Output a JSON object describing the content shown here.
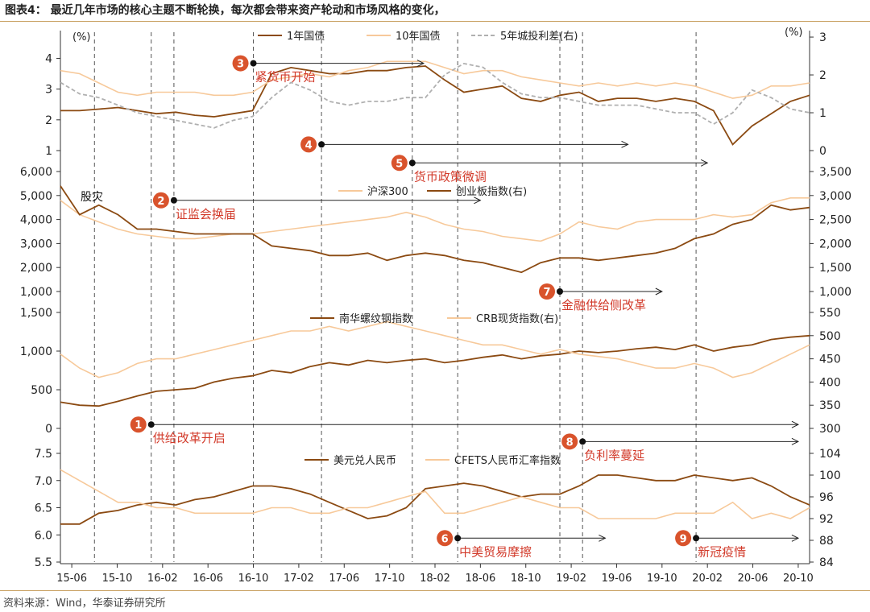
{
  "title": "图表4：  最近几年市场的核心主题不断轮换，每次都会带来资产轮动和市场风格的变化，",
  "source": "资料来源：Wind，华泰证券研究所",
  "colors": {
    "dark": "#8B4A12",
    "light": "#F7C99A",
    "gray": "#B0B0B0",
    "red": "#D23A2A",
    "badge": "#D9532C",
    "axis": "#333333"
  },
  "chart_data": {
    "type": "line",
    "x_ticks": [
      "15-06",
      "15-10",
      "16-02",
      "16-06",
      "16-10",
      "17-02",
      "17-06",
      "17-10",
      "18-02",
      "18-06",
      "18-10",
      "19-02",
      "19-06",
      "19-10",
      "20-02",
      "20-06",
      "20-10"
    ],
    "x_range": [
      "2015-05",
      "2020-11"
    ],
    "event_lines": [
      "2015-08",
      "2016-01",
      "2016-03",
      "2016-10",
      "2017-04",
      "2017-12",
      "2018-04",
      "2019-01",
      "2019-03",
      "2020-01"
    ],
    "panels": [
      {
        "id": "rates",
        "left_unit": "(%)",
        "right_unit": "(%)",
        "left_ticks": [
          "1",
          "2",
          "3",
          "4"
        ],
        "left_range": [
          1,
          4.3
        ],
        "right_ticks": [
          "0",
          "1",
          "2",
          "3"
        ],
        "right_range": [
          0,
          3.15
        ],
        "legend": [
          "1年国债",
          "10年国债",
          "5年城投利差(右)"
        ],
        "series": [
          {
            "name": "1年国债",
            "style": "dark",
            "axis": "left",
            "values": [
              2.3,
              2.3,
              2.35,
              2.4,
              2.3,
              2.2,
              2.25,
              2.15,
              2.1,
              2.2,
              2.3,
              3.5,
              3.7,
              3.6,
              3.5,
              3.5,
              3.6,
              3.6,
              3.7,
              3.75,
              3.3,
              2.9,
              3.0,
              3.1,
              2.7,
              2.6,
              2.8,
              2.9,
              2.6,
              2.7,
              2.7,
              2.6,
              2.7,
              2.6,
              2.3,
              1.2,
              1.8,
              2.2,
              2.6,
              2.8
            ]
          },
          {
            "name": "10年国债",
            "style": "light",
            "axis": "left",
            "values": [
              3.6,
              3.5,
              3.2,
              2.9,
              2.8,
              2.9,
              2.9,
              2.9,
              2.8,
              2.8,
              2.9,
              3.3,
              3.4,
              3.5,
              3.4,
              3.6,
              3.7,
              3.9,
              3.9,
              3.9,
              3.7,
              3.5,
              3.6,
              3.6,
              3.4,
              3.3,
              3.2,
              3.1,
              3.2,
              3.1,
              3.2,
              3.1,
              3.2,
              3.1,
              2.9,
              2.7,
              2.8,
              3.1,
              3.1,
              3.2
            ]
          },
          {
            "name": "5年城投利差(右)",
            "style": "gray",
            "axis": "right",
            "values": [
              1.8,
              1.5,
              1.4,
              1.2,
              1.0,
              0.9,
              0.8,
              0.7,
              0.6,
              0.8,
              0.9,
              1.4,
              1.8,
              1.6,
              1.3,
              1.2,
              1.3,
              1.3,
              1.4,
              1.4,
              2.0,
              2.3,
              2.2,
              1.8,
              1.5,
              1.4,
              1.4,
              1.3,
              1.2,
              1.2,
              1.2,
              1.1,
              1.0,
              1.0,
              0.7,
              1.0,
              1.6,
              1.4,
              1.1,
              1.0
            ]
          }
        ]
      },
      {
        "id": "equity",
        "left_ticks": [
          "1,000",
          "2,000",
          "3,000",
          "4,000",
          "5,000",
          "6,000"
        ],
        "left_range": [
          1000,
          6000
        ],
        "right_ticks": [
          "1,000",
          "1,500",
          "2,000",
          "2,500",
          "3,000",
          "3,500"
        ],
        "right_range": [
          1000,
          3500
        ],
        "legend": [
          "沪深300",
          "创业板指数(右)"
        ],
        "annotation": "股灾",
        "series": [
          {
            "name": "沪深300",
            "style": "light",
            "axis": "left",
            "values": [
              4800,
              4200,
              3900,
              3600,
              3400,
              3300,
              3200,
              3200,
              3300,
              3400,
              3400,
              3500,
              3600,
              3700,
              3800,
              3900,
              4000,
              4100,
              4300,
              4100,
              3800,
              3600,
              3500,
              3300,
              3200,
              3100,
              3400,
              3900,
              3700,
              3600,
              3900,
              4000,
              4000,
              4000,
              4200,
              4100,
              4200,
              4700,
              4900,
              4900
            ]
          },
          {
            "name": "创业板指数(右)",
            "style": "dark",
            "axis": "right",
            "values": [
              3200,
              2600,
              2800,
              2600,
              2300,
              2300,
              2250,
              2200,
              2200,
              2200,
              2200,
              1950,
              1900,
              1850,
              1750,
              1750,
              1800,
              1650,
              1750,
              1800,
              1750,
              1650,
              1600,
              1500,
              1400,
              1600,
              1700,
              1700,
              1650,
              1700,
              1750,
              1800,
              1900,
              2100,
              2200,
              2400,
              2500,
              2800,
              2700,
              2750
            ]
          }
        ]
      },
      {
        "id": "commodity",
        "left_ticks": [
          "0",
          "500",
          "1,000",
          "1,500"
        ],
        "left_range": [
          0,
          1500
        ],
        "right_ticks": [
          "300",
          "350",
          "400",
          "450",
          "500",
          "550"
        ],
        "right_range": [
          300,
          550
        ],
        "legend": [
          "南华螺纹钢指数",
          "CRB现货指数(右)"
        ],
        "series": [
          {
            "name": "南华螺纹钢指数",
            "style": "dark",
            "axis": "left",
            "values": [
              340,
              300,
              290,
              350,
              420,
              480,
              500,
              520,
              600,
              650,
              680,
              750,
              720,
              800,
              850,
              820,
              880,
              850,
              880,
              900,
              850,
              880,
              920,
              950,
              900,
              940,
              960,
              1000,
              980,
              1000,
              1030,
              1050,
              1020,
              1080,
              1000,
              1050,
              1080,
              1150,
              1180,
              1200
            ]
          },
          {
            "name": "CRB现货指数(右)",
            "style": "light",
            "axis": "right",
            "values": [
              460,
              430,
              410,
              420,
              440,
              450,
              450,
              460,
              470,
              480,
              490,
              500,
              510,
              510,
              520,
              510,
              520,
              530,
              520,
              510,
              500,
              490,
              480,
              480,
              470,
              460,
              470,
              460,
              455,
              450,
              440,
              430,
              430,
              440,
              430,
              410,
              420,
              440,
              460,
              480
            ]
          }
        ]
      },
      {
        "id": "fx",
        "left_ticks": [
          "5.5",
          "6.0",
          "6.5",
          "7.0",
          "7.5"
        ],
        "left_range": [
          5.5,
          7.5
        ],
        "right_ticks": [
          "84",
          "88",
          "92",
          "96",
          "100",
          "104"
        ],
        "right_range": [
          84,
          104
        ],
        "legend": [
          "美元兑人民币",
          "CFETS人民币汇率指数"
        ],
        "series": [
          {
            "name": "美元兑人民币",
            "style": "dark",
            "axis": "left",
            "values": [
              6.2,
              6.2,
              6.4,
              6.45,
              6.55,
              6.6,
              6.55,
              6.65,
              6.7,
              6.8,
              6.9,
              6.9,
              6.85,
              6.75,
              6.6,
              6.45,
              6.3,
              6.35,
              6.5,
              6.85,
              6.9,
              6.95,
              6.9,
              6.8,
              6.7,
              6.75,
              6.75,
              6.9,
              7.1,
              7.1,
              7.05,
              7.0,
              7.0,
              7.1,
              7.05,
              7.0,
              7.05,
              6.9,
              6.7,
              6.55
            ]
          },
          {
            "name": "CFETS人民币汇率指数",
            "style": "light",
            "axis": "right",
            "values": [
              101,
              99,
              97,
              95,
              95,
              94,
              94,
              93,
              93,
              93,
              93,
              94,
              94,
              93,
              93,
              94,
              94,
              95,
              96,
              97,
              93,
              93,
              94,
              95,
              96,
              95,
              94,
              94,
              92,
              92,
              92,
              92,
              93,
              93,
              93,
              95,
              92,
              93,
              92,
              94
            ]
          }
        ]
      }
    ],
    "events": [
      {
        "num": "1",
        "label": "供给改革开启",
        "date": "2016-01",
        "end": "2020-10",
        "panel": 2,
        "value": 50,
        "label_below": true
      },
      {
        "num": "2",
        "label": "证监会换届",
        "date": "2016-03",
        "end": "2018-06",
        "panel": 1,
        "value": 4800,
        "label_below": true
      },
      {
        "num": "3",
        "label": "紧货币开始",
        "date": "2016-10",
        "end": "2018-01",
        "panel": 0,
        "value": 3.84,
        "label_below": true
      },
      {
        "num": "4",
        "label": "",
        "date": "2017-04",
        "end": "2019-07",
        "panel": 0,
        "value": 1.2,
        "label_below": false
      },
      {
        "num": "5",
        "label": "货币政策微调",
        "date": "2017-12",
        "end": "2020-02",
        "panel": 0,
        "value": 0.6,
        "label_below": true
      },
      {
        "num": "6",
        "label": "中美贸易摩擦",
        "date": "2018-04",
        "end": "2019-05",
        "panel": 3,
        "value": 5.94,
        "label_below": true
      },
      {
        "num": "7",
        "label": "金融供给侧改革",
        "date": "2019-01",
        "end": "2019-10",
        "panel": 1,
        "value": 1000,
        "label_below": true
      },
      {
        "num": "8",
        "label": "负利率蔓延",
        "date": "2019-03",
        "end": "2020-10",
        "panel": 2,
        "value": -170,
        "label_below": true
      },
      {
        "num": "9",
        "label": "新冠疫情",
        "date": "2020-01",
        "end": "2020-10",
        "panel": 3,
        "value": 5.94,
        "label_below": true
      }
    ]
  }
}
